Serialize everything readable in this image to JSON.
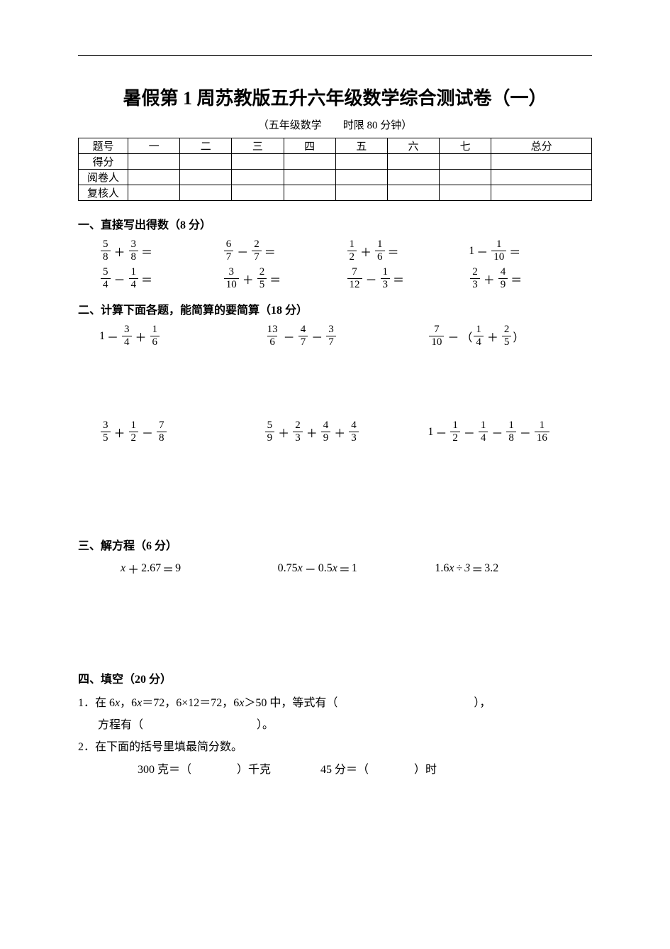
{
  "colors": {
    "text": "#000000",
    "bg": "#ffffff",
    "border": "#000000"
  },
  "typography": {
    "body_fontsize": 16,
    "title_fontsize": 26,
    "subtitle_fontsize": 15,
    "table_fontsize": 15,
    "font_family": "SimSun"
  },
  "title": "暑假第 1 周苏教版五升六年级数学综合测试卷（一）",
  "subtitle": "（五年级数学　　时限 80 分钟）",
  "table": {
    "header": [
      "题号",
      "一",
      "二",
      "三",
      "四",
      "五",
      "六",
      "七",
      "总分"
    ],
    "rows": [
      "得分",
      "阅卷人",
      "复核人"
    ]
  },
  "sections": {
    "s1": {
      "heading": "一、直接写出得数（8 分）",
      "items": [
        [
          {
            "type": "frac_add",
            "a": {
              "n": "5",
              "d": "8"
            },
            "b": {
              "n": "3",
              "d": "8"
            }
          },
          {
            "type": "frac_sub",
            "a": {
              "n": "6",
              "d": "7"
            },
            "b": {
              "n": "2",
              "d": "7"
            }
          },
          {
            "type": "frac_add",
            "a": {
              "n": "1",
              "d": "2"
            },
            "b": {
              "n": "1",
              "d": "6"
            }
          },
          {
            "type": "int_sub_frac",
            "a": "1",
            "b": {
              "n": "1",
              "d": "10"
            }
          }
        ],
        [
          {
            "type": "frac_sub",
            "a": {
              "n": "5",
              "d": "4"
            },
            "b": {
              "n": "1",
              "d": "4"
            }
          },
          {
            "type": "frac_add",
            "a": {
              "n": "3",
              "d": "10"
            },
            "b": {
              "n": "2",
              "d": "5"
            }
          },
          {
            "type": "frac_sub",
            "a": {
              "n": "7",
              "d": "12"
            },
            "b": {
              "n": "1",
              "d": "3"
            }
          },
          {
            "type": "frac_add",
            "a": {
              "n": "2",
              "d": "3"
            },
            "b": {
              "n": "4",
              "d": "9"
            }
          }
        ]
      ]
    },
    "s2": {
      "heading": "二、计算下面各题，能简算的要简算（18 分）",
      "row1": [
        {
          "text_before": "1",
          "ops": [
            {
              "op": "－",
              "f": {
                "n": "3",
                "d": "4"
              }
            },
            {
              "op": "＋",
              "f": {
                "n": "1",
                "d": "6"
              }
            }
          ]
        },
        {
          "ops": [
            {
              "f": {
                "n": "13",
                "d": "6"
              }
            },
            {
              "op": "－",
              "f": {
                "n": "4",
                "d": "7"
              }
            },
            {
              "op": "－",
              "f": {
                "n": "3",
                "d": "7"
              }
            }
          ]
        },
        {
          "ops": [
            {
              "f": {
                "n": "7",
                "d": "10"
              }
            },
            {
              "op": "－"
            }
          ],
          "paren": [
            {
              "f": {
                "n": "1",
                "d": "4"
              }
            },
            {
              "op": "＋",
              "f": {
                "n": "2",
                "d": "5"
              }
            }
          ]
        }
      ],
      "row2": [
        {
          "ops": [
            {
              "f": {
                "n": "3",
                "d": "5"
              }
            },
            {
              "op": "＋",
              "f": {
                "n": "1",
                "d": "2"
              }
            },
            {
              "op": "－",
              "f": {
                "n": "7",
                "d": "8"
              }
            }
          ]
        },
        {
          "ops": [
            {
              "f": {
                "n": "5",
                "d": "9"
              }
            },
            {
              "op": "＋",
              "f": {
                "n": "2",
                "d": "3"
              }
            },
            {
              "op": "＋",
              "f": {
                "n": "4",
                "d": "9"
              }
            },
            {
              "op": "＋",
              "f": {
                "n": "4",
                "d": "3"
              }
            }
          ]
        },
        {
          "text_before": "1",
          "ops": [
            {
              "op": "－",
              "f": {
                "n": "1",
                "d": "2"
              }
            },
            {
              "op": "－",
              "f": {
                "n": "1",
                "d": "4"
              }
            },
            {
              "op": "－",
              "f": {
                "n": "1",
                "d": "8"
              }
            },
            {
              "op": "－",
              "f": {
                "n": "1",
                "d": "16"
              }
            }
          ]
        }
      ]
    },
    "s3": {
      "heading": "三、解方程（6 分）",
      "items": [
        {
          "lhs_pre": "x",
          "lhs_op": "＋",
          "lhs_val": "2.67",
          "rhs": "9"
        },
        {
          "lhs_pre": "0.75",
          "lhs_var": "x",
          "lhs_op": "－",
          "lhs_val2": "0.5",
          "lhs_var2": "x",
          "rhs": "1"
        },
        {
          "lhs_pre": "1.6",
          "lhs_var": "x",
          "lhs_op": "÷",
          "lhs_val": "3",
          "rhs": "3.2"
        }
      ]
    },
    "s4": {
      "heading": "四、填空（20 分）",
      "q1_pre": "1．在 6",
      "q1_x1": "x",
      "q1_mid1": "，6",
      "q1_x2": "x",
      "q1_mid2": "＝72，6×12＝72，6",
      "q1_x3": "x",
      "q1_mid3": "＞50 中，等式有（　　　　　　　　　　　　），",
      "q1_line2": "方程有（　　　　　　　　　　）。",
      "q2_line1": "2．在下面的括号里填最简分数。",
      "q2_a": "300 克＝（　　　　）千克",
      "q2_b": "45 分＝（　　　　）时"
    }
  }
}
